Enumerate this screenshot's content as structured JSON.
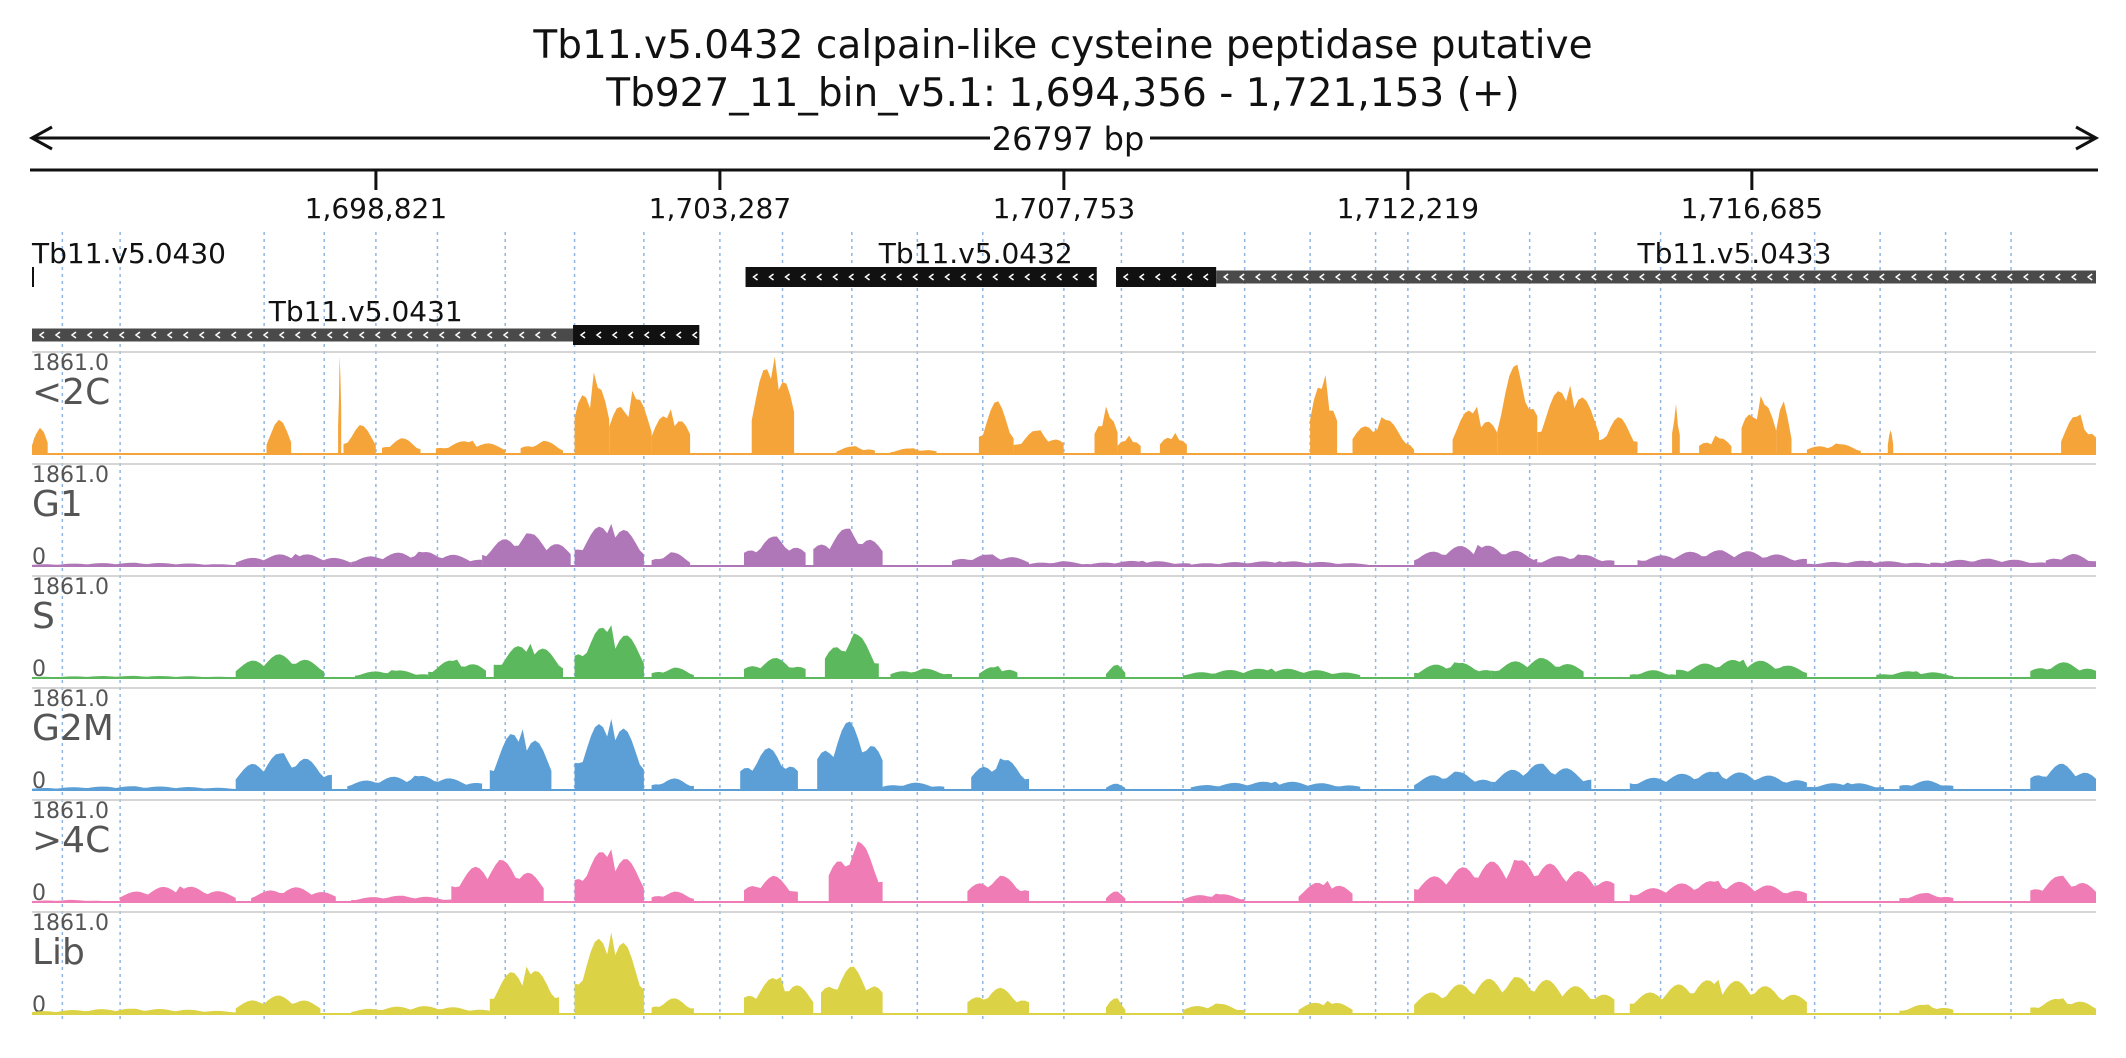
{
  "chart_data": {
    "type": "area",
    "title": "Tb11.v5.0432  calpain-like cysteine peptidase  putative",
    "subtitle": "Tb927_11_bin_v5.1: 1,694,356 - 1,721,153 (+)",
    "span_label": "26797 bp",
    "xlim": [
      1694356,
      1721153
    ],
    "x_ticks": [
      {
        "value": 1698821,
        "label": "1,698,821"
      },
      {
        "value": 1703287,
        "label": "1,703,287"
      },
      {
        "value": 1707753,
        "label": "1,707,753"
      },
      {
        "value": 1712219,
        "label": "1,712,219"
      },
      {
        "value": 1716685,
        "label": "1,716,685"
      }
    ],
    "genes": [
      {
        "name": "Tb11.v5.0430",
        "strand": "-",
        "row": 0,
        "label_start": 1694356,
        "segments": [
          [
            1694356,
            1694380,
            "cds"
          ]
        ]
      },
      {
        "name": "Tb11.v5.0431",
        "strand": "-",
        "row": 1,
        "label_start": 1697430,
        "segments": [
          [
            1694356,
            1701380,
            "utr"
          ],
          [
            1701380,
            1703020,
            "cds"
          ]
        ]
      },
      {
        "name": "Tb11.v5.0432",
        "strand": "-",
        "row": 0,
        "label_start": 1705350,
        "segments": [
          [
            1703620,
            1708180,
            "cds"
          ]
        ]
      },
      {
        "name": "Tb11.v5.0433",
        "strand": "-",
        "row": 0,
        "label_start": 1715200,
        "segments": [
          [
            1708430,
            1709730,
            "cds"
          ],
          [
            1709730,
            1721153,
            "utr"
          ]
        ]
      }
    ],
    "ylim": [
      0,
      1861.0
    ],
    "y_max_label": "1861.0",
    "y_min_label": "0",
    "guide_lines": [
      1694750,
      1695500,
      1697370,
      1698150,
      1698821,
      1699620,
      1700500,
      1701400,
      1702300,
      1703287,
      1704100,
      1705000,
      1705850,
      1706700,
      1707753,
      1708500,
      1709300,
      1710100,
      1710950,
      1711800,
      1712219,
      1712950,
      1713800,
      1714650,
      1715500,
      1716685,
      1717500,
      1718350,
      1719200,
      1720050
    ],
    "series": [
      {
        "name": "<2C",
        "color": "#f5a43a",
        "peaks": [
          [
            1694356,
            1694560,
            500
          ],
          [
            1697400,
            1697720,
            650
          ],
          [
            1698330,
            1698370,
            1861
          ],
          [
            1698400,
            1698820,
            550
          ],
          [
            1698900,
            1699400,
            300
          ],
          [
            1699600,
            1700500,
            250
          ],
          [
            1700700,
            1701250,
            250
          ],
          [
            1701400,
            1701850,
            1550
          ],
          [
            1701850,
            1702400,
            1200
          ],
          [
            1702400,
            1702900,
            850
          ],
          [
            1703700,
            1704250,
            1850
          ],
          [
            1704800,
            1705300,
            150
          ],
          [
            1705500,
            1706100,
            110
          ],
          [
            1706650,
            1707100,
            1000
          ],
          [
            1707100,
            1707750,
            450
          ],
          [
            1708150,
            1708450,
            900
          ],
          [
            1708450,
            1708750,
            350
          ],
          [
            1709000,
            1709350,
            400
          ],
          [
            1710950,
            1711300,
            1500
          ],
          [
            1711500,
            1712200,
            700
          ],
          [
            1712100,
            1712300,
            200
          ],
          [
            1712800,
            1713380,
            900
          ],
          [
            1713380,
            1713900,
            1700
          ],
          [
            1713900,
            1714700,
            1300
          ],
          [
            1714700,
            1715200,
            700
          ],
          [
            1715650,
            1715750,
            950
          ],
          [
            1716000,
            1716420,
            350
          ],
          [
            1716550,
            1717000,
            1100
          ],
          [
            1717000,
            1717200,
            1000
          ],
          [
            1717400,
            1718100,
            200
          ],
          [
            1718450,
            1718520,
            450
          ],
          [
            1720700,
            1721153,
            750
          ]
        ]
      },
      {
        "name": "G1",
        "color": "#b077b8",
        "peaks": [
          [
            1694356,
            1697000,
            60
          ],
          [
            1697000,
            1698500,
            230
          ],
          [
            1698500,
            1700200,
            270
          ],
          [
            1700200,
            1701350,
            620
          ],
          [
            1701400,
            1702300,
            800
          ],
          [
            1702400,
            1702900,
            260
          ],
          [
            1703600,
            1704400,
            560
          ],
          [
            1704500,
            1705400,
            710
          ],
          [
            1706300,
            1707300,
            220
          ],
          [
            1707300,
            1708100,
            90
          ],
          [
            1708100,
            1709400,
            100
          ],
          [
            1709400,
            1711700,
            90
          ],
          [
            1712300,
            1713900,
            400
          ],
          [
            1713900,
            1714900,
            220
          ],
          [
            1715200,
            1717400,
            300
          ],
          [
            1717400,
            1719000,
            100
          ],
          [
            1719000,
            1720500,
            140
          ],
          [
            1720500,
            1721153,
            230
          ]
        ]
      },
      {
        "name": "S",
        "color": "#5cb85c",
        "peaks": [
          [
            1694356,
            1697000,
            40
          ],
          [
            1697000,
            1698150,
            450
          ],
          [
            1698550,
            1699500,
            150
          ],
          [
            1699500,
            1700250,
            350
          ],
          [
            1700350,
            1701250,
            650
          ],
          [
            1701400,
            1702300,
            1000
          ],
          [
            1702400,
            1702950,
            200
          ],
          [
            1703600,
            1704400,
            380
          ],
          [
            1704650,
            1705350,
            850
          ],
          [
            1705500,
            1706300,
            180
          ],
          [
            1706650,
            1707150,
            230
          ],
          [
            1708300,
            1708550,
            250
          ],
          [
            1709300,
            1711600,
            180
          ],
          [
            1712300,
            1713300,
            300
          ],
          [
            1713300,
            1714500,
            380
          ],
          [
            1715100,
            1715700,
            150
          ],
          [
            1715700,
            1717400,
            350
          ],
          [
            1718300,
            1719300,
            130
          ],
          [
            1720300,
            1721153,
            300
          ]
        ]
      },
      {
        "name": "G2M",
        "color": "#5b9fd6",
        "peaks": [
          [
            1694356,
            1697000,
            70
          ],
          [
            1697000,
            1698250,
            700
          ],
          [
            1698450,
            1700200,
            270
          ],
          [
            1700300,
            1701100,
            1150
          ],
          [
            1701400,
            1702300,
            1350
          ],
          [
            1702400,
            1702950,
            220
          ],
          [
            1703550,
            1704300,
            800
          ],
          [
            1704550,
            1705400,
            1300
          ],
          [
            1705400,
            1706200,
            140
          ],
          [
            1706550,
            1707300,
            600
          ],
          [
            1708300,
            1708550,
            120
          ],
          [
            1709400,
            1711600,
            160
          ],
          [
            1712300,
            1713300,
            350
          ],
          [
            1713300,
            1714600,
            500
          ],
          [
            1715100,
            1717400,
            350
          ],
          [
            1717400,
            1718400,
            140
          ],
          [
            1718600,
            1719300,
            180
          ],
          [
            1720300,
            1721153,
            500
          ]
        ]
      },
      {
        "name": ">4C",
        "color": "#ef7cb4",
        "peaks": [
          [
            1694356,
            1695300,
            40
          ],
          [
            1695500,
            1697000,
            300
          ],
          [
            1697200,
            1698300,
            280
          ],
          [
            1698500,
            1699800,
            120
          ],
          [
            1699800,
            1701000,
            800
          ],
          [
            1701400,
            1702300,
            1000
          ],
          [
            1702400,
            1702950,
            200
          ],
          [
            1703600,
            1704300,
            500
          ],
          [
            1704700,
            1705400,
            1150
          ],
          [
            1706500,
            1707300,
            500
          ],
          [
            1708300,
            1708550,
            200
          ],
          [
            1709300,
            1710100,
            160
          ],
          [
            1710800,
            1711500,
            400
          ],
          [
            1712300,
            1714900,
            800
          ],
          [
            1715100,
            1717400,
            400
          ],
          [
            1718600,
            1719300,
            170
          ],
          [
            1720300,
            1721153,
            500
          ]
        ]
      },
      {
        "name": "Lib",
        "color": "#dcd246",
        "peaks": [
          [
            1694356,
            1697000,
            100
          ],
          [
            1697000,
            1698100,
            350
          ],
          [
            1698500,
            1700300,
            150
          ],
          [
            1700300,
            1701200,
            900
          ],
          [
            1701400,
            1702300,
            1550
          ],
          [
            1702400,
            1702950,
            300
          ],
          [
            1703600,
            1704500,
            700
          ],
          [
            1704600,
            1705400,
            900
          ],
          [
            1706500,
            1707300,
            500
          ],
          [
            1708300,
            1708550,
            300
          ],
          [
            1709300,
            1710100,
            200
          ],
          [
            1710800,
            1711500,
            250
          ],
          [
            1712300,
            1714900,
            700
          ],
          [
            1715100,
            1717400,
            650
          ],
          [
            1718600,
            1719300,
            180
          ],
          [
            1720300,
            1721153,
            300
          ]
        ]
      }
    ],
    "grid": true
  }
}
